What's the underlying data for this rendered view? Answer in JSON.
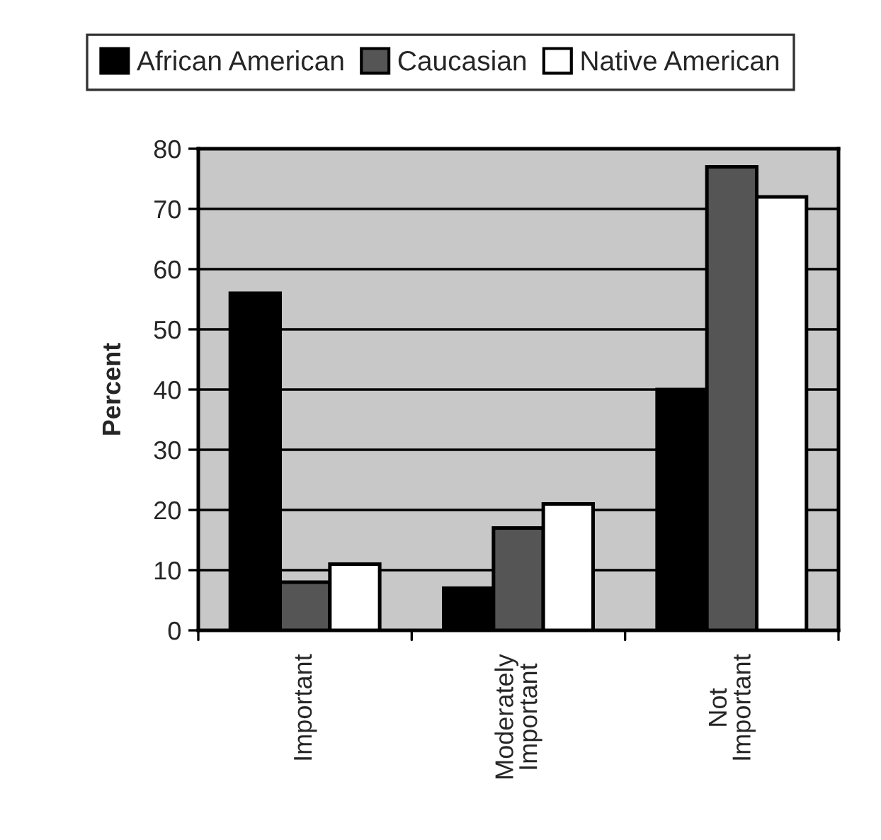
{
  "chart_data": {
    "type": "bar",
    "ylabel": "Percent",
    "categories": [
      "Important",
      "Moderately\nImportant",
      "Not\nImportant"
    ],
    "series": [
      {
        "name": "African American",
        "color": "#000000",
        "values": [
          56,
          7,
          40
        ]
      },
      {
        "name": "Caucasian",
        "color": "#555555",
        "values": [
          8,
          17,
          77
        ]
      },
      {
        "name": "Native American",
        "color": "#ffffff",
        "values": [
          11,
          21,
          72
        ]
      }
    ],
    "ylim": [
      0,
      80
    ],
    "yticks": [
      0,
      10,
      20,
      30,
      40,
      50,
      60,
      70,
      80
    ],
    "grid": "y",
    "legend": "top"
  }
}
